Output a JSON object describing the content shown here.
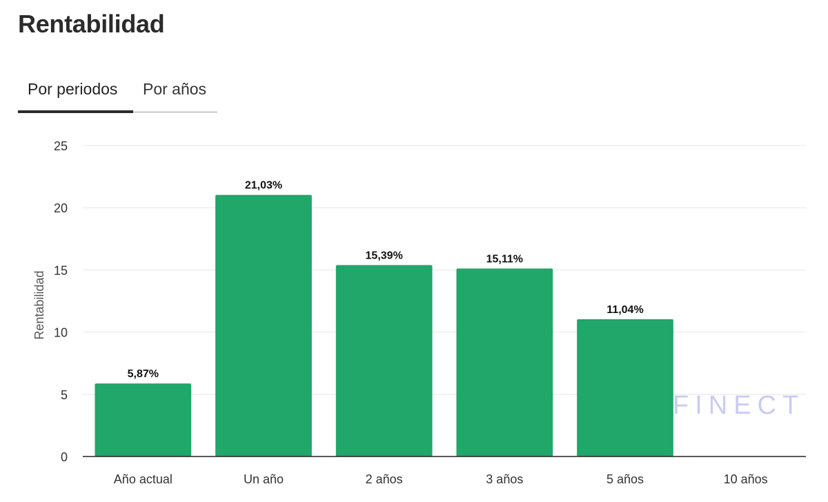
{
  "page": {
    "title": "Rentabilidad"
  },
  "tabs": [
    {
      "label": "Por periodos",
      "active": true
    },
    {
      "label": "Por años",
      "active": false
    }
  ],
  "watermark": "FINECT",
  "colors": {
    "bar": "#20a769",
    "grid": "#e6e6e6",
    "axis": "#222222",
    "text": "#333333"
  },
  "chart_data": {
    "type": "bar",
    "title": "",
    "xlabel": "",
    "ylabel": "Rentabilidad",
    "ylim": [
      0,
      25
    ],
    "yticks": [
      0,
      5,
      10,
      15,
      20,
      25
    ],
    "categories": [
      "Año actual",
      "Un año",
      "2 años",
      "3 años",
      "5 años",
      "10 años"
    ],
    "values": [
      5.87,
      21.03,
      15.39,
      15.11,
      11.04,
      null
    ],
    "labels": [
      "5,87%",
      "21,03%",
      "15,39%",
      "15,11%",
      "11,04%",
      ""
    ],
    "grid": true,
    "legend": "none"
  }
}
